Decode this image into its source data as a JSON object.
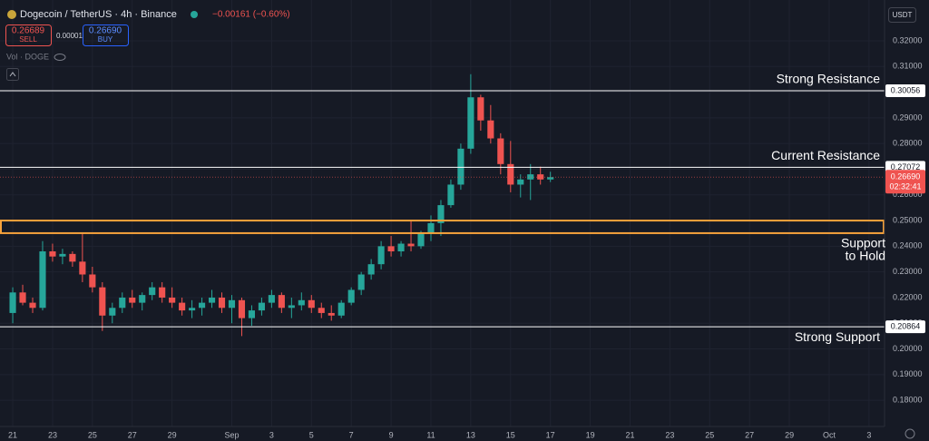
{
  "header": {
    "symbol": "Dogecoin / TetherUS · 4h · Binance",
    "change": "−0.00161 (−0.60%)",
    "sell_price": "0.26689",
    "sell_label": "SELL",
    "spread": "0.00001",
    "buy_price": "0.26690",
    "buy_label": "BUY",
    "volume_label": "Vol · DOGE",
    "currency": "USDT"
  },
  "chart_data": {
    "type": "candlestick",
    "x": [
      0,
      0.5,
      1,
      1.5,
      2,
      2.5,
      3,
      3.5,
      4,
      4.5,
      5,
      5.5,
      6,
      6.5,
      7,
      7.5,
      8,
      8.5,
      9,
      9.5,
      10,
      10.5,
      11,
      11.5,
      12,
      12.5,
      13,
      13.5,
      14,
      14.5,
      15,
      15.5,
      16,
      16.5,
      17,
      17.5,
      18,
      18.5,
      19,
      19.5,
      20,
      20.5,
      21,
      21.5,
      22,
      22.5,
      23,
      23.5,
      24,
      24.5,
      25,
      25.5,
      26,
      26.5,
      27
    ],
    "open": [
      0.214,
      0.222,
      0.218,
      0.216,
      0.238,
      0.236,
      0.237,
      0.234,
      0.229,
      0.224,
      0.213,
      0.216,
      0.22,
      0.218,
      0.221,
      0.224,
      0.22,
      0.218,
      0.215,
      0.216,
      0.218,
      0.22,
      0.216,
      0.219,
      0.212,
      0.215,
      0.218,
      0.221,
      0.216,
      0.217,
      0.219,
      0.216,
      0.214,
      0.213,
      0.218,
      0.223,
      0.229,
      0.233,
      0.24,
      0.238,
      0.241,
      0.24,
      0.245,
      0.249,
      0.256,
      0.264,
      0.278,
      0.298,
      0.289,
      0.282,
      0.272,
      0.264,
      0.266,
      0.268,
      0.266
    ],
    "high": [
      0.224,
      0.225,
      0.22,
      0.242,
      0.241,
      0.239,
      0.238,
      0.245,
      0.232,
      0.226,
      0.218,
      0.222,
      0.223,
      0.222,
      0.226,
      0.226,
      0.224,
      0.22,
      0.219,
      0.22,
      0.223,
      0.222,
      0.221,
      0.22,
      0.217,
      0.22,
      0.223,
      0.222,
      0.22,
      0.222,
      0.221,
      0.218,
      0.217,
      0.219,
      0.224,
      0.23,
      0.235,
      0.242,
      0.244,
      0.242,
      0.25,
      0.246,
      0.252,
      0.258,
      0.266,
      0.28,
      0.307,
      0.299,
      0.295,
      0.284,
      0.281,
      0.268,
      0.272,
      0.271,
      0.269
    ],
    "low": [
      0.21,
      0.217,
      0.214,
      0.215,
      0.234,
      0.233,
      0.232,
      0.226,
      0.222,
      0.207,
      0.21,
      0.214,
      0.216,
      0.215,
      0.219,
      0.218,
      0.216,
      0.213,
      0.212,
      0.213,
      0.216,
      0.214,
      0.21,
      0.205,
      0.209,
      0.213,
      0.216,
      0.214,
      0.212,
      0.215,
      0.214,
      0.212,
      0.211,
      0.212,
      0.217,
      0.221,
      0.227,
      0.231,
      0.236,
      0.236,
      0.238,
      0.239,
      0.242,
      0.244,
      0.255,
      0.262,
      0.276,
      0.285,
      0.28,
      0.268,
      0.261,
      0.259,
      0.258,
      0.264,
      0.265
    ],
    "close": [
      0.222,
      0.218,
      0.216,
      0.238,
      0.236,
      0.237,
      0.234,
      0.229,
      0.224,
      0.213,
      0.216,
      0.22,
      0.218,
      0.221,
      0.224,
      0.22,
      0.218,
      0.215,
      0.216,
      0.218,
      0.22,
      0.216,
      0.219,
      0.212,
      0.215,
      0.218,
      0.221,
      0.216,
      0.217,
      0.219,
      0.216,
      0.214,
      0.213,
      0.218,
      0.223,
      0.229,
      0.233,
      0.24,
      0.238,
      0.241,
      0.24,
      0.245,
      0.249,
      0.256,
      0.264,
      0.278,
      0.298,
      0.289,
      0.282,
      0.272,
      0.264,
      0.266,
      0.268,
      0.266,
      0.2669
    ],
    "up_color": "#26a69a",
    "down_color": "#ef5350",
    "xlim": [
      -0.64,
      43.78
    ],
    "ylim": [
      0.1698,
      0.3359
    ],
    "xticks": [
      {
        "value": 0,
        "label": "21"
      },
      {
        "value": 2,
        "label": "23"
      },
      {
        "value": 4,
        "label": "25"
      },
      {
        "value": 6,
        "label": "27"
      },
      {
        "value": 8,
        "label": "29"
      },
      {
        "value": 11,
        "label": "Sep"
      },
      {
        "value": 13,
        "label": "3"
      },
      {
        "value": 15,
        "label": "5"
      },
      {
        "value": 17,
        "label": "7"
      },
      {
        "value": 19,
        "label": "9"
      },
      {
        "value": 21,
        "label": "11"
      },
      {
        "value": 23,
        "label": "13"
      },
      {
        "value": 25,
        "label": "15"
      },
      {
        "value": 27,
        "label": "17"
      },
      {
        "value": 29,
        "label": "19"
      },
      {
        "value": 31,
        "label": "21"
      },
      {
        "value": 33,
        "label": "23"
      },
      {
        "value": 35,
        "label": "25"
      },
      {
        "value": 37,
        "label": "27"
      },
      {
        "value": 39,
        "label": "29"
      },
      {
        "value": 41,
        "label": "Oct"
      },
      {
        "value": 43,
        "label": "3"
      }
    ],
    "yticks": [
      {
        "value": 0.18,
        "label": "0.18000"
      },
      {
        "value": 0.19,
        "label": "0.19000"
      },
      {
        "value": 0.2,
        "label": "0.20000"
      },
      {
        "value": 0.21,
        "label": "0.21000"
      },
      {
        "value": 0.22,
        "label": "0.22000"
      },
      {
        "value": 0.23,
        "label": "0.23000"
      },
      {
        "value": 0.24,
        "label": "0.24000"
      },
      {
        "value": 0.25,
        "label": "0.25000"
      },
      {
        "value": 0.26,
        "label": "0.26000"
      },
      {
        "value": 0.27,
        "label": "0.27000"
      },
      {
        "value": 0.28,
        "label": "0.28000"
      },
      {
        "value": 0.29,
        "label": "0.29000"
      },
      {
        "value": 0.3,
        "label": "0.30000"
      },
      {
        "value": 0.31,
        "label": "0.31000"
      },
      {
        "value": 0.32,
        "label": "0.32000"
      }
    ],
    "grid": true,
    "levels": [
      {
        "name": "Strong Resistance",
        "value": 0.30056,
        "value_label": "0.30056"
      },
      {
        "name": "Current Resistance",
        "value": 0.27072,
        "value_label": "0.27072"
      },
      {
        "name": "Strong Support",
        "value": 0.20864,
        "value_label": "0.20864"
      }
    ],
    "support_zone": {
      "lines": [
        "Support",
        "to Hold"
      ],
      "low": 0.2451,
      "high": 0.25,
      "color": "#f7a23b"
    },
    "last_price": {
      "value": 0.2669,
      "value_label": "0.26690",
      "countdown": "02:32:41"
    }
  }
}
